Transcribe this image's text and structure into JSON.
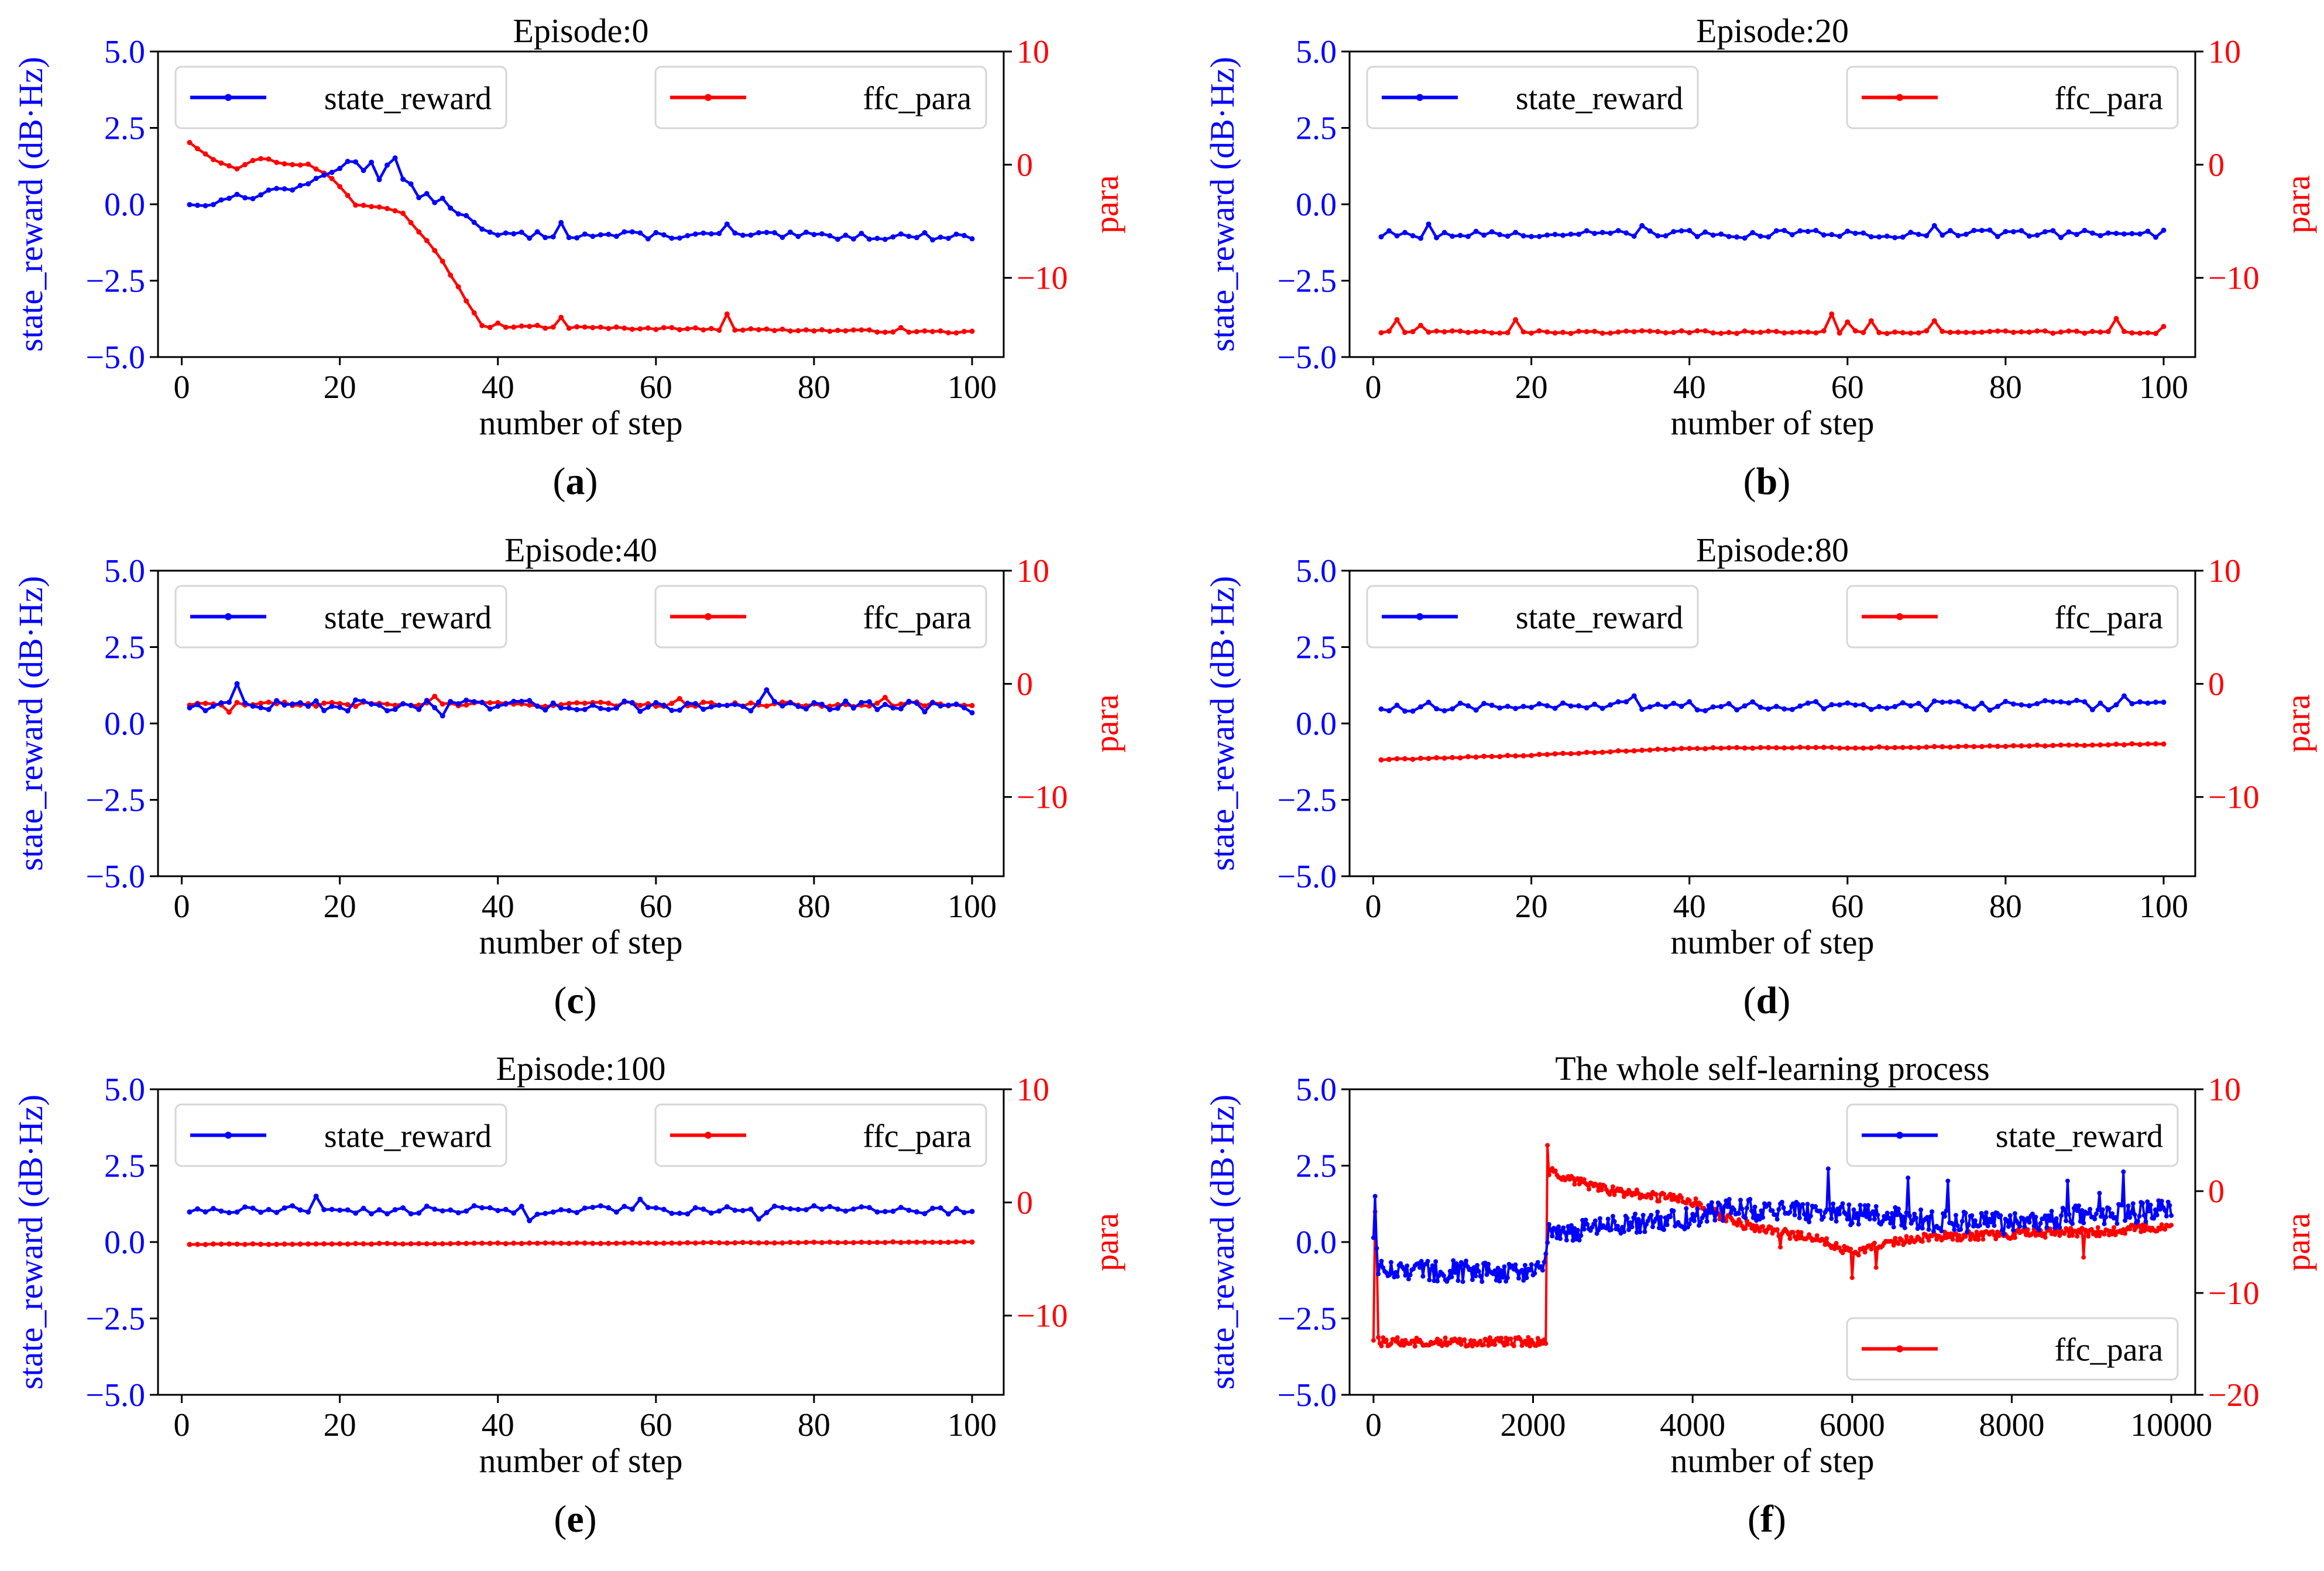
{
  "colors": {
    "reward": "#0000ff",
    "para": "#ff0000",
    "axis": "#000000",
    "background": "#ffffff"
  },
  "chart_data": [
    {
      "id": "a",
      "caption": "a",
      "type": "line",
      "title": "Episode:0",
      "xlabel": "number of step",
      "ylabel_left": "state_reward (dB·Hz)",
      "ylabel_right": "para",
      "xlim": [
        -3,
        104
      ],
      "ylim_left": [
        -5,
        5
      ],
      "ylim_right": [
        -17,
        10
      ],
      "xticks": [
        0,
        20,
        40,
        60,
        80,
        100
      ],
      "xtick_labels": [
        "0",
        "20",
        "40",
        "60",
        "80",
        "100"
      ],
      "yticks_left": [
        -5,
        -2.5,
        0,
        2.5,
        5
      ],
      "ytick_labels_left": [
        "−5.0",
        "−2.5",
        "0.0",
        "2.5",
        "5.0"
      ],
      "yticks_right": [
        -10,
        0,
        10
      ],
      "ytick_labels_right": [
        "−10",
        "0",
        "10"
      ],
      "legend_left": {
        "label": "state_reward",
        "position": "upper-left"
      },
      "legend_right": {
        "label": "ffc_para",
        "position": "upper-right"
      },
      "series_left": {
        "name": "state_reward",
        "x_start": 1,
        "x_step": 1,
        "keypoints": [
          [
            1,
            0.05
          ],
          [
            3,
            -0.1
          ],
          [
            5,
            0.25
          ],
          [
            8,
            0.2
          ],
          [
            10,
            0.35
          ],
          [
            13,
            0.55
          ],
          [
            15,
            0.5
          ],
          [
            17,
            0.8
          ],
          [
            19,
            1.1
          ],
          [
            21,
            1.4
          ],
          [
            23,
            1.2
          ],
          [
            24,
            1.45
          ],
          [
            25,
            0.8
          ],
          [
            26,
            1.4
          ],
          [
            27,
            1.45
          ],
          [
            28,
            0.8
          ],
          [
            30,
            0.3
          ],
          [
            33,
            0.1
          ],
          [
            36,
            -0.4
          ],
          [
            38,
            -0.9
          ],
          [
            40,
            -1.0
          ],
          [
            100,
            -1.05
          ]
        ],
        "noise": 0.12,
        "spikes": [
          [
            48,
            -0.6
          ],
          [
            69,
            -0.65
          ]
        ]
      },
      "series_right": {
        "name": "ffc_para",
        "x_start": 1,
        "x_step": 1,
        "keypoints": [
          [
            1,
            2
          ],
          [
            4,
            0.5
          ],
          [
            7,
            -0.3
          ],
          [
            10,
            0.6
          ],
          [
            13,
            0.1
          ],
          [
            16,
            0
          ],
          [
            19,
            -1.2
          ],
          [
            22,
            -3.5
          ],
          [
            26,
            -3.8
          ],
          [
            28,
            -4.2
          ],
          [
            32,
            -7.5
          ],
          [
            35,
            -10.8
          ],
          [
            38,
            -14.3
          ],
          [
            100,
            -14.8
          ]
        ],
        "noise": 0.1,
        "spikes": [
          [
            40,
            -14
          ],
          [
            45,
            -14.2
          ],
          [
            48,
            -13.5
          ],
          [
            62,
            -14.4
          ],
          [
            69,
            -13.2
          ],
          [
            91,
            -14.4
          ]
        ]
      }
    },
    {
      "id": "b",
      "caption": "b",
      "type": "line",
      "title": "Episode:20",
      "xlabel": "number of step",
      "ylabel_left": "state_reward (dB·Hz)",
      "ylabel_right": "para",
      "xlim": [
        -3,
        104
      ],
      "ylim_left": [
        -5,
        5
      ],
      "ylim_right": [
        -17,
        10
      ],
      "xticks": [
        0,
        20,
        40,
        60,
        80,
        100
      ],
      "xtick_labels": [
        "0",
        "20",
        "40",
        "60",
        "80",
        "100"
      ],
      "yticks_left": [
        -5,
        -2.5,
        0,
        2.5,
        5
      ],
      "ytick_labels_left": [
        "−5.0",
        "−2.5",
        "0.0",
        "2.5",
        "5.0"
      ],
      "yticks_right": [
        -10,
        0,
        10
      ],
      "ytick_labels_right": [
        "−10",
        "0",
        "10"
      ],
      "legend_left": {
        "label": "state_reward",
        "position": "upper-left"
      },
      "legend_right": {
        "label": "ffc_para",
        "position": "upper-right"
      },
      "series_left": {
        "name": "state_reward",
        "x_start": 1,
        "x_step": 1,
        "keypoints": [
          [
            1,
            -1.0
          ],
          [
            100,
            -0.95
          ]
        ],
        "noise": 0.13,
        "spikes": [
          [
            7,
            -0.65
          ],
          [
            34,
            -0.7
          ],
          [
            71,
            -0.7
          ],
          [
            100,
            -0.85
          ]
        ]
      },
      "series_right": {
        "name": "ffc_para",
        "x_start": 1,
        "x_step": 1,
        "keypoints": [
          [
            1,
            -14.8
          ],
          [
            100,
            -14.8
          ]
        ],
        "noise": 0.12,
        "spikes": [
          [
            3,
            -13.7
          ],
          [
            6,
            -14.2
          ],
          [
            18,
            -13.7
          ],
          [
            58,
            -13.2
          ],
          [
            60,
            -13.9
          ],
          [
            63,
            -13.8
          ],
          [
            71,
            -13.8
          ],
          [
            94,
            -13.6
          ],
          [
            100,
            -14.3
          ]
        ]
      }
    },
    {
      "id": "c",
      "caption": "c",
      "type": "line",
      "title": "Episode:40",
      "xlabel": "number of step",
      "ylabel_left": "state_reward (dB·Hz)",
      "ylabel_right": "para",
      "xlim": [
        -3,
        104
      ],
      "ylim_left": [
        -5,
        5
      ],
      "ylim_right": [
        -17,
        10
      ],
      "xticks": [
        0,
        20,
        40,
        60,
        80,
        100
      ],
      "xtick_labels": [
        "0",
        "20",
        "40",
        "60",
        "80",
        "100"
      ],
      "yticks_left": [
        -5,
        -2.5,
        0,
        2.5,
        5
      ],
      "ytick_labels_left": [
        "−5.0",
        "−2.5",
        "0.0",
        "2.5",
        "5.0"
      ],
      "yticks_right": [
        -10,
        0,
        10
      ],
      "ytick_labels_right": [
        "−10",
        "0",
        "10"
      ],
      "legend_left": {
        "label": "state_reward",
        "position": "upper-left"
      },
      "legend_right": {
        "label": "ffc_para",
        "position": "upper-right"
      },
      "series_left": {
        "name": "state_reward",
        "x_start": 1,
        "x_step": 1,
        "keypoints": [
          [
            1,
            0.6
          ],
          [
            100,
            0.55
          ]
        ],
        "noise": 0.18,
        "spikes": [
          [
            7,
            1.3
          ],
          [
            33,
            0.25
          ],
          [
            74,
            1.1
          ],
          [
            100,
            0.35
          ]
        ]
      },
      "series_right": {
        "name": "ffc_para",
        "x_start": 1,
        "x_step": 1,
        "keypoints": [
          [
            1,
            -1.8
          ],
          [
            100,
            -1.8
          ]
        ],
        "noise": 0.2,
        "spikes": [
          [
            6,
            -2.5
          ],
          [
            32,
            -1.1
          ],
          [
            63,
            -1.3
          ],
          [
            89,
            -1.2
          ]
        ]
      }
    },
    {
      "id": "d",
      "caption": "d",
      "type": "line",
      "title": "Episode:80",
      "xlabel": "number of step",
      "ylabel_left": "state_reward (dB·Hz)",
      "ylabel_right": "para",
      "xlim": [
        -3,
        104
      ],
      "ylim_left": [
        -5,
        5
      ],
      "ylim_right": [
        -17,
        10
      ],
      "xticks": [
        0,
        20,
        40,
        60,
        80,
        100
      ],
      "xtick_labels": [
        "0",
        "20",
        "40",
        "60",
        "80",
        "100"
      ],
      "yticks_left": [
        -5,
        -2.5,
        0,
        2.5,
        5
      ],
      "ytick_labels_left": [
        "−5.0",
        "−2.5",
        "0.0",
        "2.5",
        "5.0"
      ],
      "yticks_right": [
        -10,
        0,
        10
      ],
      "ytick_labels_right": [
        "−10",
        "0",
        "10"
      ],
      "legend_left": {
        "label": "state_reward",
        "position": "upper-left"
      },
      "legend_right": {
        "label": "ffc_para",
        "position": "upper-right"
      },
      "series_left": {
        "name": "state_reward",
        "x_start": 1,
        "x_step": 1,
        "keypoints": [
          [
            1,
            0.55
          ],
          [
            100,
            0.6
          ]
        ],
        "noise": 0.16,
        "spikes": [
          [
            33,
            0.9
          ],
          [
            95,
            0.9
          ]
        ]
      },
      "series_right": {
        "name": "ffc_para",
        "x_start": 1,
        "x_step": 1,
        "keypoints": [
          [
            1,
            -6.7
          ],
          [
            20,
            -6.3
          ],
          [
            40,
            -5.7
          ],
          [
            70,
            -5.6
          ],
          [
            100,
            -5.3
          ]
        ],
        "noise": 0.05,
        "spikes": []
      }
    },
    {
      "id": "e",
      "caption": "e",
      "type": "line",
      "title": "Episode:100",
      "xlabel": "number of step",
      "ylabel_left": "state_reward (dB·Hz)",
      "ylabel_right": "para",
      "xlim": [
        -3,
        104
      ],
      "ylim_left": [
        -5,
        5
      ],
      "ylim_right": [
        -17,
        10
      ],
      "xticks": [
        0,
        20,
        40,
        60,
        80,
        100
      ],
      "xtick_labels": [
        "0",
        "20",
        "40",
        "60",
        "80",
        "100"
      ],
      "yticks_left": [
        -5,
        -2.5,
        0,
        2.5,
        5
      ],
      "ytick_labels_left": [
        "−5.0",
        "−2.5",
        "0.0",
        "2.5",
        "5.0"
      ],
      "yticks_right": [
        -10,
        0,
        10
      ],
      "ytick_labels_right": [
        "−10",
        "0",
        "10"
      ],
      "legend_left": {
        "label": "state_reward",
        "position": "upper-left"
      },
      "legend_right": {
        "label": "ffc_para",
        "position": "upper-right"
      },
      "series_left": {
        "name": "state_reward",
        "x_start": 1,
        "x_step": 1,
        "keypoints": [
          [
            1,
            1.05
          ],
          [
            100,
            1.05
          ]
        ],
        "noise": 0.14,
        "spikes": [
          [
            17,
            1.5
          ],
          [
            44,
            0.7
          ],
          [
            58,
            1.4
          ],
          [
            73,
            0.75
          ]
        ]
      },
      "series_right": {
        "name": "ffc_para",
        "x_start": 1,
        "x_step": 1,
        "keypoints": [
          [
            1,
            -3.7
          ],
          [
            100,
            -3.5
          ]
        ],
        "noise": 0.03,
        "spikes": []
      }
    },
    {
      "id": "f",
      "caption": "f",
      "type": "line",
      "title": "The whole self-learning process",
      "xlabel": "number of step",
      "ylabel_left": "state_reward (dB·Hz)",
      "ylabel_right": "para",
      "xlim": [
        -300,
        10300
      ],
      "ylim_left": [
        -5,
        5
      ],
      "ylim_right": [
        -20,
        10
      ],
      "xticks": [
        0,
        2000,
        4000,
        6000,
        8000,
        10000
      ],
      "xtick_labels": [
        "0",
        "2000",
        "4000",
        "6000",
        "8000",
        "10000"
      ],
      "yticks_left": [
        -5,
        -2.5,
        0,
        2.5,
        5
      ],
      "ytick_labels_left": [
        "−5.0",
        "−2.5",
        "0.0",
        "2.5",
        "5.0"
      ],
      "yticks_right": [
        -20,
        -10,
        0,
        10
      ],
      "ytick_labels_right": [
        "−20",
        "−10",
        "0",
        "10"
      ],
      "legend_left": {
        "label": "state_reward",
        "position": "upper-right"
      },
      "legend_right": {
        "label": "ffc_para",
        "position": "lower-right"
      },
      "series_left": {
        "name": "state_reward",
        "x_start": 0,
        "x_step": 20,
        "keypoints": [
          [
            0,
            0.3
          ],
          [
            60,
            -0.9
          ],
          [
            2150,
            -1.0
          ],
          [
            2190,
            0.3
          ],
          [
            3000,
            0.5
          ],
          [
            4000,
            0.8
          ],
          [
            4500,
            1.1
          ],
          [
            5000,
            1.0
          ],
          [
            6000,
            0.9
          ],
          [
            7000,
            0.7
          ],
          [
            8000,
            0.6
          ],
          [
            9000,
            0.9
          ],
          [
            10000,
            1.05
          ]
        ],
        "noise": 0.35,
        "spikes": [
          [
            30,
            1.5
          ],
          [
            5700,
            2.4
          ],
          [
            6700,
            2.1
          ],
          [
            7200,
            2.0
          ],
          [
            8700,
            2.0
          ],
          [
            9400,
            2.3
          ],
          [
            9100,
            1.6
          ]
        ]
      },
      "series_right": {
        "name": "ffc_para",
        "x_start": 0,
        "x_step": 20,
        "keypoints": [
          [
            0,
            -14.5
          ],
          [
            25,
            1.5
          ],
          [
            60,
            -14.8
          ],
          [
            2160,
            -14.8
          ],
          [
            2190,
            2.0
          ],
          [
            2500,
            1.0
          ],
          [
            3000,
            0.0
          ],
          [
            4000,
            -1.0
          ],
          [
            4500,
            -3.0
          ],
          [
            5000,
            -4.0
          ],
          [
            5500,
            -4.5
          ],
          [
            6000,
            -6.0
          ],
          [
            6500,
            -5.0
          ],
          [
            7000,
            -4.5
          ],
          [
            8000,
            -4.2
          ],
          [
            9000,
            -4.0
          ],
          [
            10000,
            -3.5
          ]
        ],
        "noise": 0.45,
        "spikes": [
          [
            2190,
            4.5
          ],
          [
            6000,
            -8.5
          ],
          [
            6300,
            -7.5
          ],
          [
            8900,
            -6.5
          ],
          [
            5100,
            -5.5
          ]
        ]
      }
    }
  ]
}
